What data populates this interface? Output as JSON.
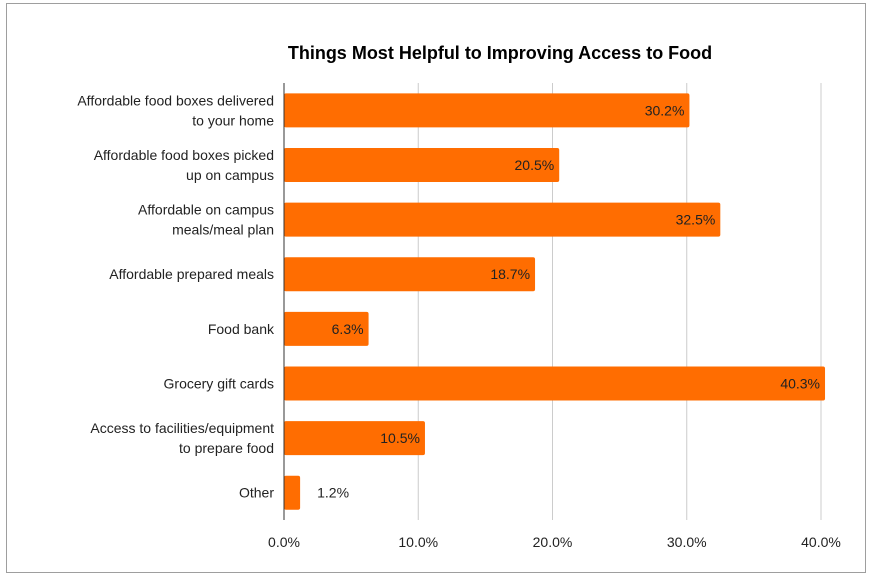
{
  "chart_data": {
    "type": "bar",
    "orientation": "horizontal",
    "title": "Things Most Helpful to Improving Access to Food",
    "categories": [
      [
        "Affordable food boxes delivered",
        "to your home"
      ],
      [
        "Affordable food boxes picked",
        "up on campus"
      ],
      [
        "Affordable on campus",
        "meals/meal plan"
      ],
      [
        "Affordable prepared meals"
      ],
      [
        "Food bank"
      ],
      [
        "Grocery gift cards"
      ],
      [
        "Access to facilities/equipment",
        "to prepare food"
      ],
      [
        "Other"
      ]
    ],
    "values": [
      30.2,
      20.5,
      32.5,
      18.7,
      6.3,
      40.3,
      10.5,
      1.2
    ],
    "data_labels": [
      "30.2%",
      "20.5%",
      "32.5%",
      "18.7%",
      "6.3%",
      "40.3%",
      "10.5%",
      "1.2%"
    ],
    "x_ticks": [
      "0.0%",
      "10.0%",
      "20.0%",
      "30.0%",
      "40.0%"
    ],
    "xlim": [
      0,
      40
    ],
    "grid": true,
    "bar_color": "#ff6d01"
  }
}
